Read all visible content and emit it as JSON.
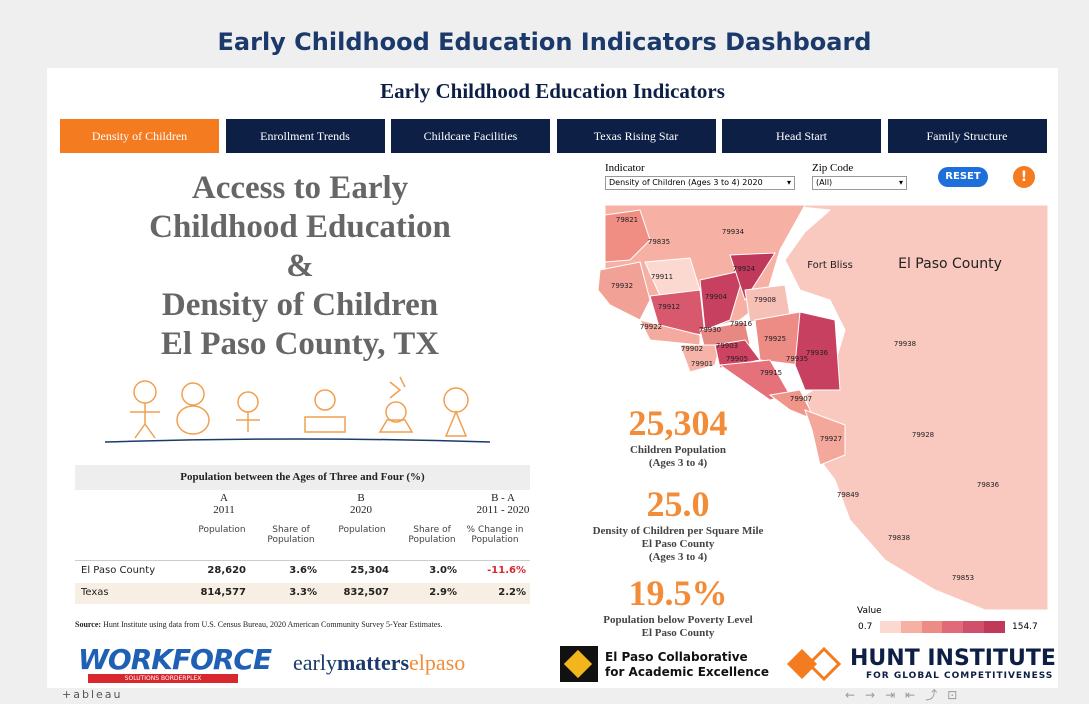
{
  "header": {
    "title": "Early Childhood Education Indicators Dashboard"
  },
  "dashboard": {
    "title": "Early Childhood Education Indicators"
  },
  "tabs": [
    "Density of Children",
    "Enrollment Trends",
    "Childcare Facilities",
    "Texas Rising Star",
    "Head Start",
    "Family Structure"
  ],
  "hero": [
    "Access to Early",
    "Childhood Education",
    "&",
    "Density of Children",
    "El Paso County, TX"
  ],
  "table": {
    "title": "Population between the Ages of Three and Four (%)",
    "groups": [
      {
        "letter": "A",
        "year": "2011"
      },
      {
        "letter": "B",
        "year": "2020"
      },
      {
        "letter": "B - A",
        "year": "2011 - 2020"
      }
    ],
    "columns": [
      "Population",
      "Share of Population",
      "Population",
      "Share of Population",
      "% Change in Population"
    ],
    "rows": [
      [
        "El Paso County",
        "28,620",
        "3.6%",
        "25,304",
        "3.0%",
        "-11.6%"
      ],
      [
        "Texas",
        "814,577",
        "3.3%",
        "832,507",
        "2.9%",
        "2.2%"
      ]
    ]
  },
  "source": {
    "label": "Source:",
    "text": "Hunt Institute using data from U.S. Census Bureau, 2020 American Community Survey 5-Year Estimates."
  },
  "filters": {
    "indicator_label": "Indicator",
    "indicator_value": "Density of Children (Ages 3 to 4) 2020",
    "zip_label": "Zip Code",
    "zip_value": "(All)",
    "reset": "RESET",
    "alert": "!"
  },
  "map": {
    "zips": [
      "79821",
      "79835",
      "79934",
      "79911",
      "79924",
      "79932",
      "79904",
      "79908",
      "79912",
      "79916",
      "79922",
      "79930",
      "79925",
      "79902",
      "79903",
      "79936",
      "79905",
      "79935",
      "79901",
      "79915",
      "79907",
      "79927",
      "79938",
      "79928",
      "79836",
      "79849",
      "79838",
      "79853"
    ],
    "areas": [
      "Fort Bliss",
      "El Paso County"
    ]
  },
  "stats": [
    {
      "value": "25,304",
      "lines": [
        "Children Population",
        "(Ages 3 to 4)"
      ]
    },
    {
      "value": "25.0",
      "lines": [
        "Density of Children per Square Mile",
        "El Paso County",
        "(Ages 3 to 4)"
      ]
    },
    {
      "value": "19.5%",
      "lines": [
        "Population below Poverty Level",
        "El Paso County"
      ]
    }
  ],
  "legend": {
    "title": "Value",
    "min": "0.7",
    "max": "154.7"
  },
  "logos": {
    "workforce": "WORKFORCE",
    "workforce_sub": "SOLUTIONS BORDERPLEX",
    "early": [
      "early",
      "matters",
      "elpaso"
    ],
    "collab": [
      "El Paso Collaborative",
      "for Academic Excellence"
    ],
    "hunt": [
      "HUNT INSTITUTE",
      "FOR GLOBAL COMPETITIVENESS"
    ]
  },
  "footer": {
    "brand": "+ableau"
  }
}
